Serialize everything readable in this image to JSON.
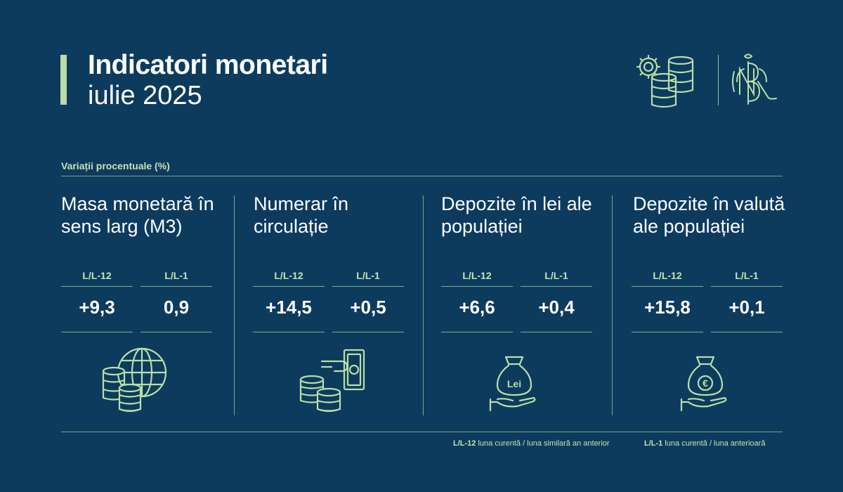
{
  "header": {
    "title": "Indicatori monetari",
    "subtitle": "iulie 2025"
  },
  "section_label": "Variații procentuale (%)",
  "indicators": [
    {
      "title": "Masa monetară în sens larg (M3)",
      "ll12_label": "L/L-12",
      "ll12_value": "+9,3",
      "ll1_label": "L/L-1",
      "ll1_value": "0,9",
      "icon": "globe-coins-icon"
    },
    {
      "title": "Numerar în circulație",
      "ll12_label": "L/L-12",
      "ll12_value": "+14,5",
      "ll1_label": "L/L-1",
      "ll1_value": "+0,5",
      "icon": "cash-coins-icon"
    },
    {
      "title": "Depozite în lei ale populației",
      "ll12_label": "L/L-12",
      "ll12_value": "+6,6",
      "ll1_label": "L/L-1",
      "ll1_value": "+0,4",
      "icon": "lei-moneybag-hand-icon",
      "icon_text": "Lei"
    },
    {
      "title": "Depozite în valută ale populației",
      "ll12_label": "L/L-12",
      "ll12_value": "+15,8",
      "ll1_label": "L/L-1",
      "ll1_value": "+0,1",
      "icon": "euro-moneybag-hand-icon",
      "icon_text": "€"
    }
  ],
  "footer": {
    "ll12_key": "L/L-12",
    "ll12_desc": "luna curentă / luna similară an anterior",
    "ll1_key": "L/L-1",
    "ll1_desc": "luna curentă / luna anterioară"
  },
  "colors": {
    "background": "#0d3b5e",
    "accent": "#b9dfa6",
    "text": "#ffffff"
  }
}
